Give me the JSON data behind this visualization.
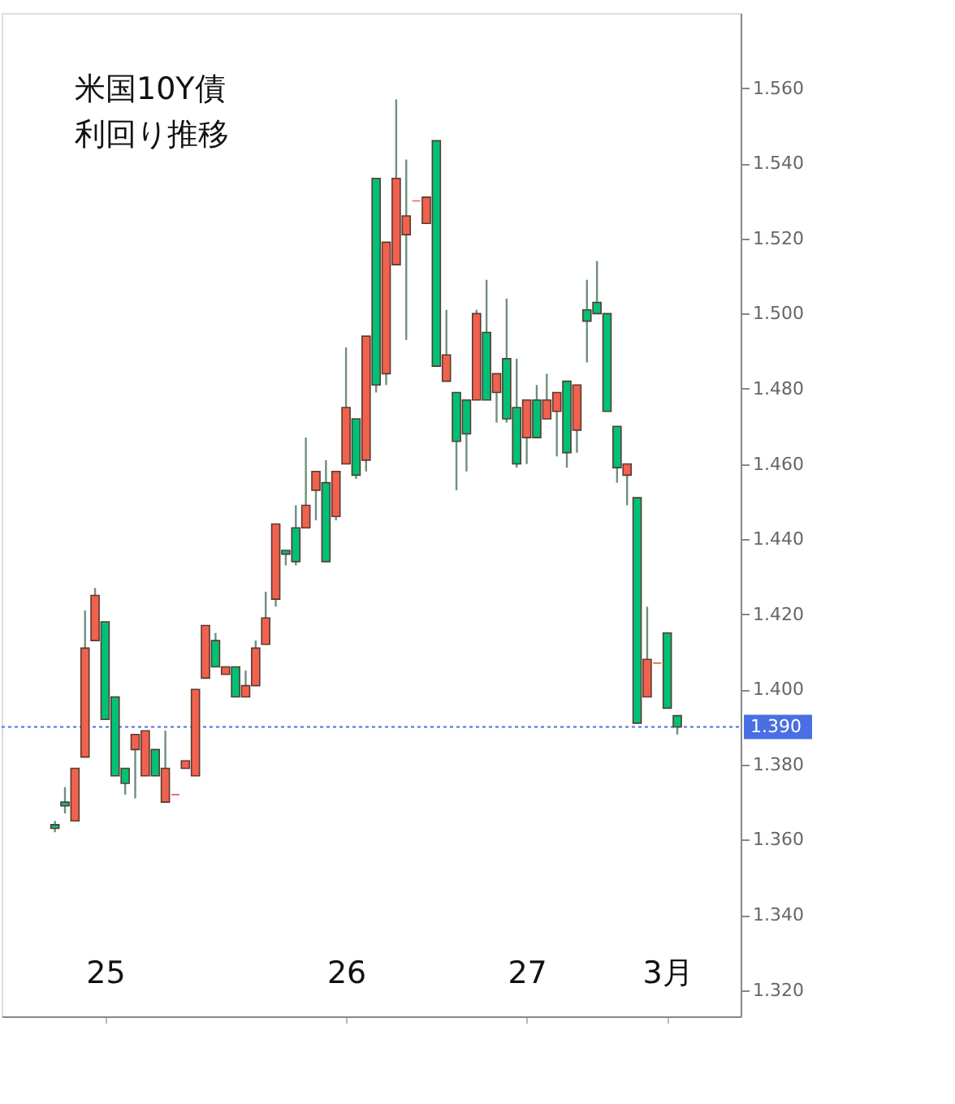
{
  "chart_data": {
    "type": "candlestick",
    "title": "米国10Y債利回り推移",
    "categories": [
      null,
      null,
      null,
      null,
      null,
      "25",
      null,
      null,
      null,
      null,
      null,
      null,
      null,
      null,
      null,
      null,
      null,
      null,
      null,
      null,
      null,
      null,
      null,
      null,
      null,
      null,
      null,
      null,
      null,
      "26",
      null,
      null,
      null,
      null,
      null,
      null,
      null,
      null,
      null,
      null,
      null,
      null,
      null,
      null,
      null,
      null,
      null,
      "27",
      null,
      null,
      null,
      null,
      null,
      null,
      null,
      null,
      null,
      null,
      null,
      null,
      null,
      "3月",
      null
    ],
    "ohlc": [
      [
        1.364,
        1.365,
        1.362,
        1.363
      ],
      [
        1.37,
        1.374,
        1.367,
        1.369
      ],
      [
        1.365,
        1.379,
        1.365,
        1.379
      ],
      [
        1.382,
        1.421,
        1.382,
        1.411
      ],
      [
        1.413,
        1.427,
        1.413,
        1.425
      ],
      [
        1.418,
        1.418,
        1.392,
        1.392
      ],
      [
        1.398,
        1.398,
        1.377,
        1.377
      ],
      [
        1.379,
        1.379,
        1.372,
        1.375
      ],
      [
        1.384,
        1.388,
        1.371,
        1.388
      ],
      [
        1.377,
        1.389,
        1.377,
        1.389
      ],
      [
        1.384,
        1.384,
        1.377,
        1.377
      ],
      [
        1.37,
        1.389,
        1.37,
        1.379
      ],
      [
        1.372,
        1.372,
        1.372,
        1.372
      ],
      [
        1.379,
        1.381,
        1.379,
        1.381
      ],
      [
        1.377,
        1.4,
        1.377,
        1.4
      ],
      [
        1.403,
        1.417,
        1.403,
        1.417
      ],
      [
        1.413,
        1.415,
        1.406,
        1.406
      ],
      [
        1.404,
        1.406,
        1.404,
        1.406
      ],
      [
        1.406,
        1.406,
        1.398,
        1.398
      ],
      [
        1.398,
        1.405,
        1.398,
        1.401
      ],
      [
        1.401,
        1.413,
        1.401,
        1.411
      ],
      [
        1.412,
        1.426,
        1.412,
        1.419
      ],
      [
        1.424,
        1.444,
        1.422,
        1.444
      ],
      [
        1.437,
        1.437,
        1.433,
        1.436
      ],
      [
        1.443,
        1.449,
        1.433,
        1.434
      ],
      [
        1.443,
        1.467,
        1.443,
        1.449
      ],
      [
        1.453,
        1.458,
        1.445,
        1.458
      ],
      [
        1.455,
        1.461,
        1.434,
        1.434
      ],
      [
        1.446,
        1.458,
        1.445,
        1.458
      ],
      [
        1.46,
        1.491,
        1.46,
        1.475
      ],
      [
        1.472,
        1.472,
        1.456,
        1.457
      ],
      [
        1.461,
        1.494,
        1.458,
        1.494
      ],
      [
        1.536,
        1.536,
        1.479,
        1.481
      ],
      [
        1.484,
        1.519,
        1.481,
        1.519
      ],
      [
        1.513,
        1.557,
        1.513,
        1.536
      ],
      [
        1.521,
        1.541,
        1.493,
        1.526
      ],
      [
        1.53,
        1.53,
        1.53,
        1.53
      ],
      [
        1.524,
        1.531,
        1.524,
        1.531
      ],
      [
        1.546,
        1.546,
        1.486,
        1.486
      ],
      [
        1.482,
        1.501,
        1.482,
        1.489
      ],
      [
        1.479,
        1.479,
        1.453,
        1.466
      ],
      [
        1.477,
        1.477,
        1.458,
        1.468
      ],
      [
        1.477,
        1.501,
        1.477,
        1.5
      ],
      [
        1.495,
        1.509,
        1.477,
        1.477
      ],
      [
        1.479,
        1.484,
        1.471,
        1.484
      ],
      [
        1.488,
        1.504,
        1.471,
        1.472
      ],
      [
        1.475,
        1.488,
        1.459,
        1.46
      ],
      [
        1.467,
        1.477,
        1.46,
        1.477
      ],
      [
        1.477,
        1.481,
        1.467,
        1.467
      ],
      [
        1.472,
        1.484,
        1.472,
        1.477
      ],
      [
        1.474,
        1.479,
        1.462,
        1.479
      ],
      [
        1.482,
        1.482,
        1.459,
        1.463
      ],
      [
        1.469,
        1.481,
        1.463,
        1.481
      ],
      [
        1.501,
        1.509,
        1.487,
        1.498
      ],
      [
        1.503,
        1.514,
        1.5,
        1.5
      ],
      [
        1.5,
        1.5,
        1.474,
        1.474
      ],
      [
        1.47,
        1.47,
        1.455,
        1.459
      ],
      [
        1.457,
        1.46,
        1.449,
        1.46
      ],
      [
        1.451,
        1.451,
        1.391,
        1.391
      ],
      [
        1.398,
        1.422,
        1.398,
        1.408
      ],
      [
        1.407,
        1.407,
        1.407,
        1.407
      ],
      [
        1.415,
        1.415,
        1.395,
        1.395
      ],
      [
        1.393,
        1.393,
        1.388,
        1.39
      ]
    ],
    "colors": [
      "#00c176",
      "#00c176",
      "#f0624d",
      "#f0624d",
      "#f0624d",
      "#00c176",
      "#00c176",
      "#00c176",
      "#f0624d",
      "#f0624d",
      "#00c176",
      "#f0624d",
      "#f0624d",
      "#f0624d",
      "#f0624d",
      "#f0624d",
      "#00c176",
      "#f0624d",
      "#00c176",
      "#f0624d",
      "#f0624d",
      "#f0624d",
      "#f0624d",
      "#00c176",
      "#00c176",
      "#f0624d",
      "#f0624d",
      "#00c176",
      "#f0624d",
      "#f0624d",
      "#00c176",
      "#f0624d",
      "#00c176",
      "#f0624d",
      "#f0624d",
      "#f0624d",
      "#f0624d",
      "#f0624d",
      "#00c176",
      "#f0624d",
      "#00c176",
      "#00c176",
      "#f0624d",
      "#00c176",
      "#f0624d",
      "#00c176",
      "#00c176",
      "#f0624d",
      "#00c176",
      "#f0624d",
      "#f0624d",
      "#00c176",
      "#f0624d",
      "#00c176",
      "#00c176",
      "#00c176",
      "#00c176",
      "#f0624d",
      "#00c176",
      "#f0624d",
      "#f0624d",
      "#00c176",
      "#00c176"
    ],
    "ylim": [
      1.313,
      1.58
    ],
    "yticks": [
      {
        "value": 1.32,
        "label": "1.320"
      },
      {
        "value": 1.34,
        "label": "1.340"
      },
      {
        "value": 1.36,
        "label": "1.360"
      },
      {
        "value": 1.38,
        "label": "1.380"
      },
      {
        "value": 1.4,
        "label": "1.400"
      },
      {
        "value": 1.42,
        "label": "1.420"
      },
      {
        "value": 1.44,
        "label": "1.440"
      },
      {
        "value": 1.46,
        "label": "1.460"
      },
      {
        "value": 1.48,
        "label": "1.480"
      },
      {
        "value": 1.5,
        "label": "1.500"
      },
      {
        "value": 1.52,
        "label": "1.520"
      },
      {
        "value": 1.54,
        "label": "1.540"
      },
      {
        "value": 1.56,
        "label": "1.560"
      }
    ],
    "ref_lines": [
      {
        "axis": "y",
        "value": 1.39,
        "label": "1.390",
        "color": "#4a6fe3",
        "line_style": "dotted"
      }
    ],
    "grid": false
  }
}
